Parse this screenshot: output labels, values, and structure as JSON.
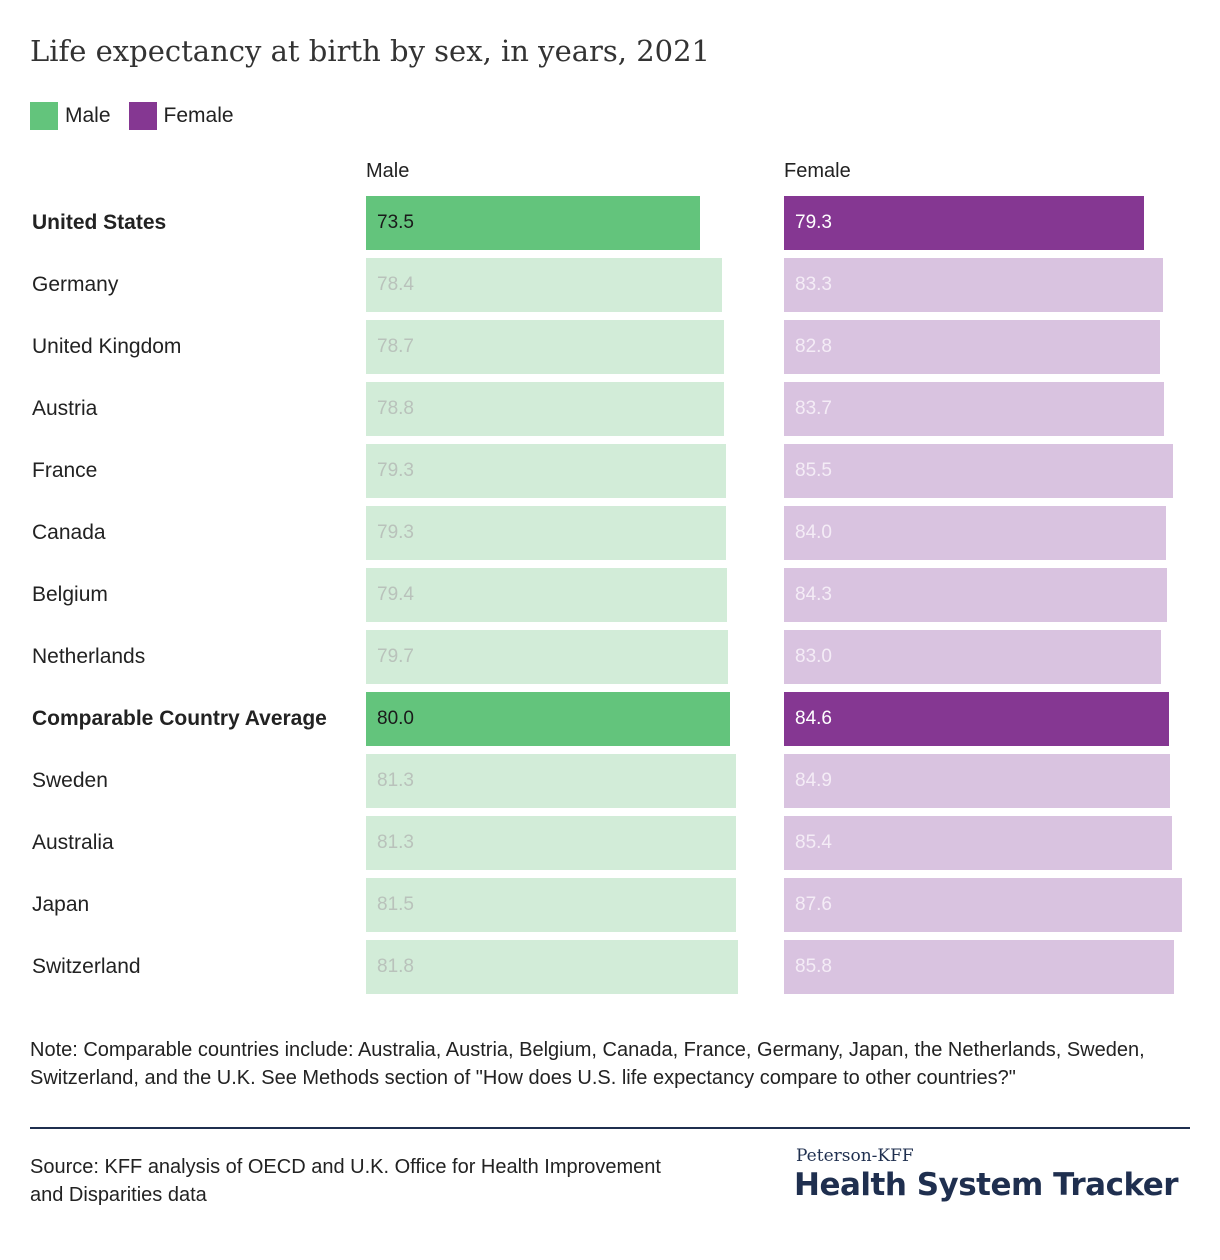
{
  "title": "Life expectancy at birth by sex, in years, 2021",
  "legend": [
    {
      "label": "Male",
      "color": "#63c47c"
    },
    {
      "label": "Female",
      "color": "#853792"
    }
  ],
  "colors": {
    "male_highlight": "#63c47c",
    "male_faded": "#d2ecd8",
    "female_highlight": "#853792",
    "female_faded": "#d9c3e0",
    "label_dark": "#1a1a1a",
    "label_light_on_purple": "#ffffff",
    "faded_label_male": "#b9c2bb",
    "faded_label_female": "#f4ecf6"
  },
  "chart_data": {
    "type": "bar",
    "orientation": "horizontal",
    "categories": [
      "United States",
      "Germany",
      "United Kingdom",
      "Austria",
      "France",
      "Canada",
      "Belgium",
      "Netherlands",
      "Comparable Country Average",
      "Sweden",
      "Australia",
      "Japan",
      "Switzerland"
    ],
    "highlighted": [
      "United States",
      "Comparable Country Average"
    ],
    "series": [
      {
        "name": "Male",
        "values": [
          73.5,
          78.4,
          78.7,
          78.8,
          79.3,
          79.3,
          79.4,
          79.7,
          80.0,
          81.3,
          81.3,
          81.5,
          81.8
        ],
        "labels": [
          "73.5",
          "78.4",
          "78.7",
          "78.8",
          "79.3",
          "79.3",
          "79.4",
          "79.7",
          "80.0",
          "81.3",
          "81.3",
          "81.5",
          "81.8"
        ]
      },
      {
        "name": "Female",
        "values": [
          79.3,
          83.3,
          82.8,
          83.7,
          85.5,
          84.0,
          84.3,
          83.0,
          84.6,
          84.9,
          85.4,
          87.6,
          85.8
        ],
        "labels": [
          "79.3",
          "83.3",
          "82.8",
          "83.7",
          "85.5",
          "84.0",
          "84.3",
          "83.0",
          "84.6",
          "84.9",
          "85.4",
          "87.6",
          "85.8"
        ]
      }
    ],
    "xlim": [
      0,
      92
    ],
    "grid": false,
    "legend_position": "top-left"
  },
  "note": "Note: Comparable countries include: Australia, Austria, Belgium, Canada, France, Germany, Japan, the Netherlands, Sweden, Switzerland, and the U.K. See Methods section of \"How does U.S. life expectancy compare to other countries?\"",
  "source": "Source: KFF analysis of OECD and U.K. Office for Health Improvement and Disparities data",
  "brand": {
    "top": "Peterson-KFF",
    "main": "Health System Tracker"
  }
}
